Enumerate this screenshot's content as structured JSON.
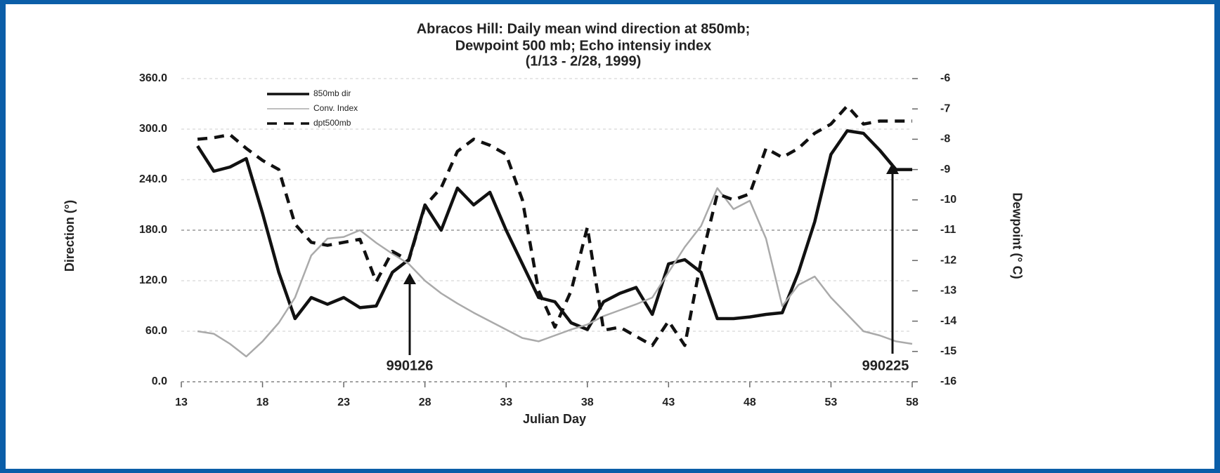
{
  "chart_data": {
    "type": "line",
    "title": [
      "Abracos Hill:  Daily mean wind direction at 850mb;",
      "Dewpoint 500 mb; Echo intensiy index",
      "(1/13 - 2/28, 1999)"
    ],
    "x_label": "Julian Day",
    "y_label": "Direction (°)",
    "y2_label": "Dewpoint (° C)",
    "x": [
      14,
      15,
      16,
      17,
      18,
      19,
      20,
      21,
      22,
      23,
      24,
      25,
      26,
      27,
      28,
      29,
      30,
      31,
      32,
      33,
      34,
      35,
      36,
      37,
      38,
      39,
      40,
      41,
      42,
      43,
      44,
      45,
      46,
      47,
      48,
      49,
      50,
      51,
      52,
      53,
      54,
      55,
      56,
      57,
      58
    ],
    "series": [
      {
        "name": "850mb dir",
        "color": "#111111",
        "style": "solid",
        "values": [
          280,
          250,
          255,
          265,
          200,
          130,
          75,
          100,
          92,
          100,
          88,
          90,
          130,
          145,
          210,
          180,
          230,
          210,
          225,
          180,
          140,
          100,
          95,
          70,
          62,
          95,
          105,
          112,
          80,
          140,
          145,
          130,
          75,
          75,
          77,
          80,
          82,
          130,
          190,
          270,
          298,
          295,
          275,
          252,
          252
        ]
      },
      {
        "name": "Conv. Index",
        "color": "#aaaaaa",
        "style": "thin",
        "values": [
          60,
          57,
          45,
          30,
          48,
          70,
          100,
          150,
          170,
          172,
          180,
          165,
          152,
          140,
          120,
          105,
          93,
          82,
          72,
          62,
          52,
          48,
          55,
          62,
          68,
          78,
          85,
          92,
          100,
          130,
          160,
          185,
          230,
          205,
          215,
          170,
          90,
          115,
          125,
          100,
          80,
          60,
          55,
          48,
          45
        ]
      },
      {
        "name": "dpt500mb",
        "color": "#111111",
        "style": "dashed",
        "axis": "y2",
        "values": [
          -8.0,
          -7.95,
          -7.85,
          -8.3,
          -8.7,
          -9.0,
          -10.8,
          -11.4,
          -11.5,
          -11.4,
          -11.3,
          -12.7,
          -11.7,
          -12.0,
          -10.2,
          -9.6,
          -8.4,
          -8.0,
          -8.2,
          -8.5,
          -10.0,
          -13.0,
          -14.2,
          -13.0,
          -10.9,
          -14.3,
          -14.2,
          -14.5,
          -14.8,
          -14.0,
          -14.8,
          -12.0,
          -9.8,
          -10.0,
          -9.8,
          -8.3,
          -8.6,
          -8.3,
          -7.8,
          -7.5,
          -6.9,
          -7.5,
          -7.4,
          -7.4,
          -7.4
        ]
      }
    ],
    "xlim": [
      13,
      58
    ],
    "xticks": [
      13,
      18,
      23,
      28,
      33,
      38,
      43,
      48,
      53,
      58
    ],
    "ylim": [
      0,
      360
    ],
    "yticks": [
      {
        "value": 0,
        "label": "0.0"
      },
      {
        "value": 60,
        "label": "60.0"
      },
      {
        "value": 120,
        "label": "120.0"
      },
      {
        "value": 180,
        "label": "180.0"
      },
      {
        "value": 240,
        "label": "240.0"
      },
      {
        "value": 300,
        "label": "300.0"
      },
      {
        "value": 360,
        "label": "360.0"
      }
    ],
    "y2lim": [
      -16,
      -6
    ],
    "y2ticks": [
      -16,
      -15,
      -14,
      -13,
      -12,
      -11,
      -10,
      -9,
      -8,
      -7,
      -6
    ],
    "grid": true,
    "legend": "upper left",
    "annotations": [
      "990126",
      "990225"
    ]
  }
}
